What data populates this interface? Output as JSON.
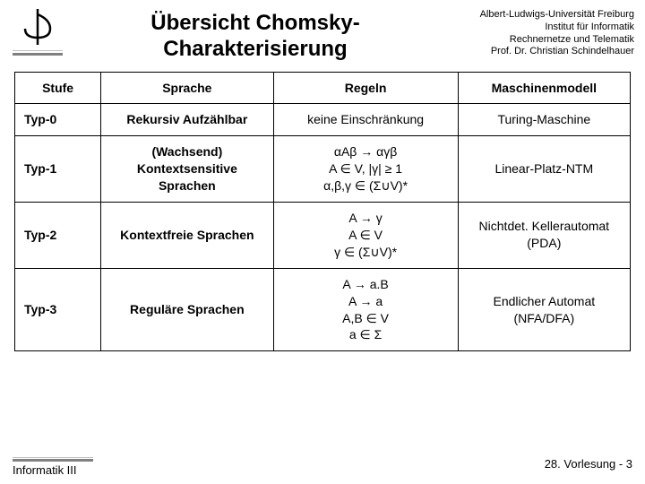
{
  "slide": {
    "title_l1": "Übersicht Chomsky-",
    "title_l2": "Charakterisierung",
    "affiliation": {
      "l1": "Albert-Ludwigs-Universität Freiburg",
      "l2": "Institut für Informatik",
      "l3": "Rechnernetze und Telematik",
      "l4": "Prof. Dr. Christian Schindelhauer"
    },
    "footer_left": "Informatik III",
    "footer_right": "28. Vorlesung - 3"
  },
  "table": {
    "header": {
      "c0": "Stufe",
      "c1": "Sprache",
      "c2": "Regeln",
      "c3": "Maschinenmodell"
    },
    "rows": [
      {
        "stufe": "Typ-0",
        "sprache": "Rekursiv Aufzählbar",
        "regeln": "keine Einschränkung",
        "maschine": "Turing-Maschine"
      },
      {
        "stufe": "Typ-1",
        "sprache": "(Wachsend) Kontextsensitive Sprachen",
        "regeln": "αAβ → αγβ\nA ∈ V, |γ| ≥ 1\nα,β,γ ∈ (Σ∪V)*",
        "maschine": "Linear-Platz-NTM"
      },
      {
        "stufe": "Typ-2",
        "sprache": "Kontextfreie Sprachen",
        "regeln": "A → γ\nA ∈ V\nγ ∈ (Σ∪V)*",
        "maschine": "Nichtdet. Kellerautomat (PDA)"
      },
      {
        "stufe": "Typ-3",
        "sprache": "Reguläre Sprachen",
        "regeln": "A → a.B\nA → a\nA,B ∈ V\na ∈ Σ",
        "maschine": "Endlicher Automat (NFA/DFA)"
      }
    ]
  },
  "style": {
    "background_color": "#ffffff",
    "text_color": "#000000",
    "border_color": "#000000",
    "underline_gray": "#808080",
    "title_fontsize_pt": 18,
    "body_fontsize_pt": 11,
    "affil_fontsize_pt": 8,
    "col_widths_pct": [
      14,
      28,
      30,
      28
    ]
  }
}
